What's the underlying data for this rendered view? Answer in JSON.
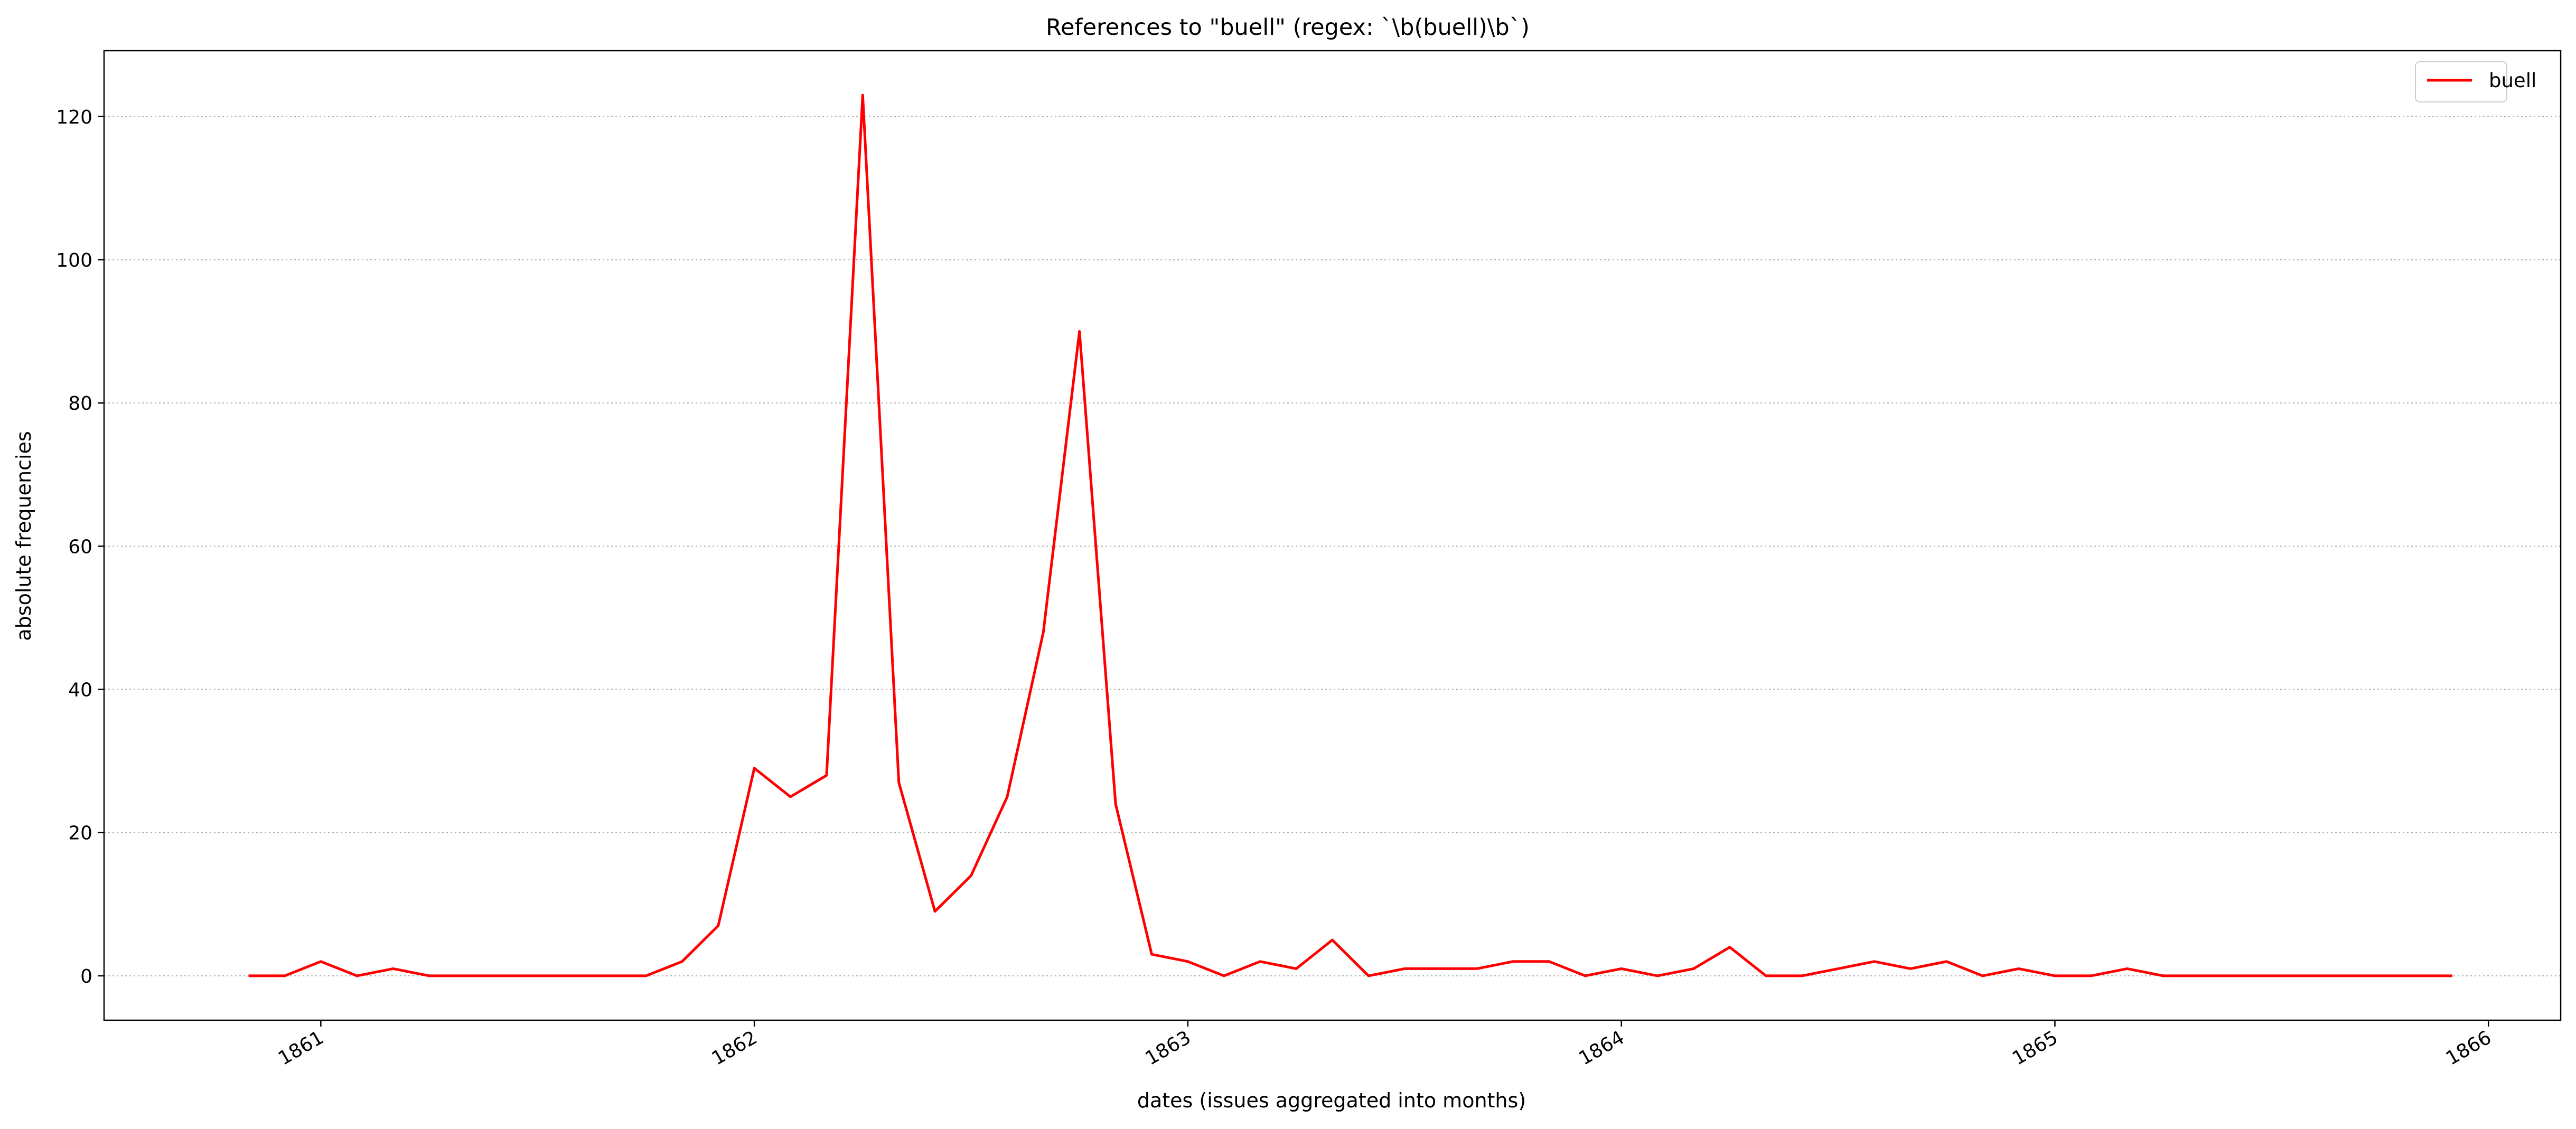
{
  "chart_data": {
    "type": "line",
    "title": "References to \"buell\" (regex: `\\b(buell)\\b`)",
    "xlabel": "dates (issues aggregated into months)",
    "ylabel": "absolute frequencies",
    "xlim": [
      "1860-07",
      "1866-03"
    ],
    "ylim": [
      -6.2,
      129.2
    ],
    "x_ticks": [
      "1861",
      "1862",
      "1863",
      "1864",
      "1865",
      "1866"
    ],
    "y_ticks": [
      0,
      20,
      40,
      60,
      80,
      100,
      120
    ],
    "grid": "y, dotted",
    "legend": "top-right",
    "line_color": "#ff0000",
    "series": [
      {
        "name": "buell",
        "x": [
          "1860-11",
          "1860-12",
          "1861-01",
          "1861-02",
          "1861-03",
          "1861-04",
          "1861-05",
          "1861-06",
          "1861-07",
          "1861-08",
          "1861-09",
          "1861-10",
          "1861-11",
          "1861-12",
          "1862-01",
          "1862-02",
          "1862-03",
          "1862-04",
          "1862-05",
          "1862-06",
          "1862-07",
          "1862-08",
          "1862-09",
          "1862-10",
          "1862-11",
          "1862-12",
          "1863-01",
          "1863-02",
          "1863-03",
          "1863-04",
          "1863-05",
          "1863-06",
          "1863-07",
          "1863-08",
          "1863-09",
          "1863-10",
          "1863-11",
          "1863-12",
          "1864-01",
          "1864-02",
          "1864-03",
          "1864-04",
          "1864-05",
          "1864-06",
          "1864-07",
          "1864-08",
          "1864-09",
          "1864-10",
          "1864-11",
          "1864-12",
          "1865-01",
          "1865-02",
          "1865-03",
          "1865-04",
          "1865-05",
          "1865-06",
          "1865-07",
          "1865-08",
          "1865-09",
          "1865-10",
          "1865-11",
          "1865-12"
        ],
        "values": [
          0,
          0,
          2,
          0,
          1,
          0,
          0,
          0,
          0,
          0,
          0,
          0,
          2,
          7,
          29,
          25,
          28,
          123,
          27,
          9,
          14,
          25,
          48,
          90,
          24,
          3,
          2,
          0,
          2,
          1,
          5,
          0,
          1,
          1,
          1,
          2,
          2,
          0,
          1,
          0,
          1,
          4,
          0,
          0,
          1,
          2,
          1,
          2,
          0,
          1,
          0,
          0,
          1,
          0,
          0,
          0,
          0,
          0,
          0,
          0,
          0,
          0
        ]
      }
    ]
  }
}
